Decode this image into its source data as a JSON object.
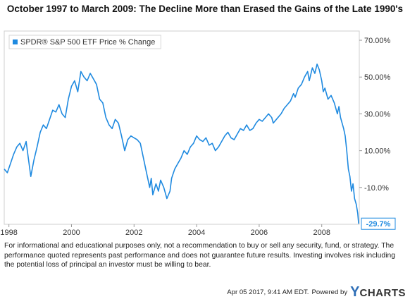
{
  "chart_data": {
    "type": "line",
    "title": "October 1997 to March 2009: The Decline More than Erased the Gains of the Late 1990's",
    "xlabel": "",
    "ylabel": "",
    "xlim": [
      1997.85,
      2009.2
    ],
    "ylim": [
      -30,
      75
    ],
    "x_ticks": [
      1998,
      2000,
      2002,
      2004,
      2006,
      2008
    ],
    "x_tick_labels": [
      "1998",
      "2000",
      "2002",
      "2004",
      "2006",
      "2008"
    ],
    "y_ticks": [
      70,
      50,
      30,
      10,
      -10
    ],
    "y_tick_labels": [
      "70.00%",
      "50.00%",
      "30.00%",
      "10.00%",
      "-10.0%"
    ],
    "grid": false,
    "legend": "top-left",
    "last_value_label": "-29.7%",
    "series": [
      {
        "name": "SPDR® S&P 500 ETF Price % Change",
        "color": "#1f8ae0",
        "x": [
          1997.85,
          1997.95,
          1998.05,
          1998.15,
          1998.25,
          1998.35,
          1998.45,
          1998.55,
          1998.62,
          1998.7,
          1998.8,
          1998.9,
          1999.0,
          1999.1,
          1999.2,
          1999.3,
          1999.4,
          1999.5,
          1999.6,
          1999.7,
          1999.8,
          1999.9,
          2000.0,
          2000.1,
          2000.2,
          2000.3,
          2000.4,
          2000.5,
          2000.6,
          2000.7,
          2000.8,
          2000.9,
          2001.0,
          2001.1,
          2001.2,
          2001.3,
          2001.4,
          2001.5,
          2001.6,
          2001.7,
          2001.8,
          2001.9,
          2002.0,
          2002.1,
          2002.2,
          2002.3,
          2002.4,
          2002.5,
          2002.55,
          2002.6,
          2002.7,
          2002.78,
          2002.85,
          2002.95,
          2003.05,
          2003.15,
          2003.2,
          2003.3,
          2003.4,
          2003.5,
          2003.6,
          2003.7,
          2003.8,
          2003.9,
          2004.0,
          2004.1,
          2004.2,
          2004.3,
          2004.4,
          2004.5,
          2004.6,
          2004.7,
          2004.8,
          2004.9,
          2005.0,
          2005.1,
          2005.2,
          2005.3,
          2005.4,
          2005.5,
          2005.6,
          2005.7,
          2005.8,
          2005.9,
          2006.0,
          2006.1,
          2006.2,
          2006.3,
          2006.4,
          2006.45,
          2006.55,
          2006.7,
          2006.8,
          2006.9,
          2007.0,
          2007.1,
          2007.15,
          2007.25,
          2007.35,
          2007.45,
          2007.55,
          2007.6,
          2007.7,
          2007.78,
          2007.85,
          2007.92,
          2008.0,
          2008.05,
          2008.1,
          2008.2,
          2008.3,
          2008.4,
          2008.5,
          2008.55,
          2008.6,
          2008.7,
          2008.75,
          2008.8,
          2008.85,
          2008.9,
          2008.95,
          2009.0,
          2009.05,
          2009.1,
          2009.15,
          2009.18
        ],
        "y": [
          0,
          -2,
          3,
          8,
          12,
          14,
          10,
          15,
          6,
          -4,
          5,
          12,
          20,
          24,
          22,
          27,
          32,
          31,
          35,
          30,
          28,
          38,
          45,
          48,
          42,
          53,
          50,
          48,
          52,
          49,
          46,
          38,
          36,
          28,
          24,
          22,
          27,
          25,
          18,
          10,
          16,
          18,
          17,
          16,
          14,
          6,
          -2,
          -10,
          -5,
          -14,
          -8,
          -12,
          -6,
          -10,
          -16,
          -12,
          -5,
          0,
          3,
          6,
          10,
          8,
          12,
          14,
          18,
          16,
          15,
          17,
          13,
          14,
          10,
          12,
          15,
          18,
          20,
          17,
          16,
          19,
          22,
          21,
          24,
          21,
          22,
          25,
          27,
          26,
          28,
          30,
          28,
          25,
          27,
          30,
          33,
          35,
          37,
          41,
          39,
          44,
          46,
          50,
          53,
          48,
          55,
          52,
          57,
          54,
          48,
          42,
          44,
          38,
          40,
          36,
          30,
          34,
          28,
          22,
          18,
          10,
          0,
          -4,
          -12,
          -8,
          -16,
          -19,
          -24,
          -29.7
        ]
      }
    ]
  },
  "disclaimer": "For informational and educational purposes only, not a recommendation to buy or sell any security, fund, or strategy. The performance quoted represents past performance and does not guarantee future results. Investing involves risk including the potential loss of principal an investor must be willing to bear.",
  "footer": {
    "timestamp": "Apr 05 2017, 9:41 AM EDT.",
    "powered_by": "Powered by",
    "logo_y": "Y",
    "logo_rest": "CHARTS"
  }
}
